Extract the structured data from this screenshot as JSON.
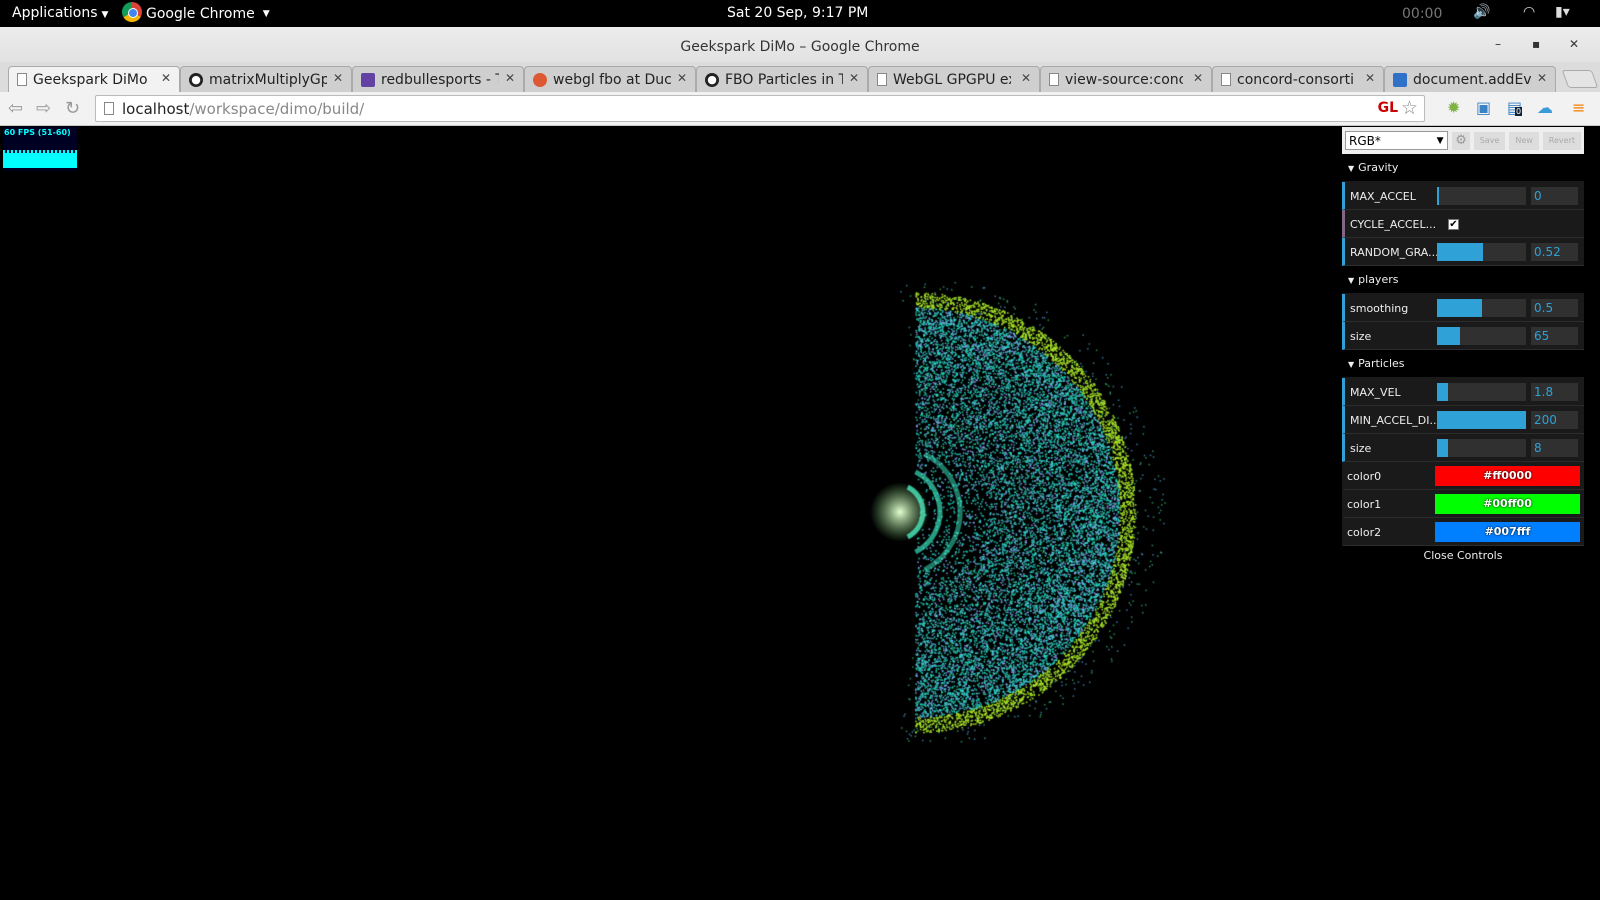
{
  "system": {
    "applications_label": "Applications",
    "chrome_app_label": "Google Chrome",
    "clock": "Sat 20 Sep,  9:17 PM",
    "timer": "00:00"
  },
  "window": {
    "title": "Geekspark DiMo – Google Chrome"
  },
  "tabs": [
    {
      "label": "Geekspark DiMo",
      "icon": "page-icon"
    },
    {
      "label": "matrixMultiplyGpu.",
      "icon": "github-icon"
    },
    {
      "label": "redbullesports - Tw",
      "icon": "twitch-icon"
    },
    {
      "label": "webgl fbo at DuckD",
      "icon": "duckduckgo-icon"
    },
    {
      "label": "FBO Particles in Thr",
      "icon": "github-icon"
    },
    {
      "label": "WebGL GPGPU exp",
      "icon": "page-icon"
    },
    {
      "label": "view-source:concor",
      "icon": "page-icon"
    },
    {
      "label": "concord-consortium",
      "icon": "page-icon"
    },
    {
      "label": "document.addEven",
      "icon": "site-icon"
    }
  ],
  "address": {
    "host": "localhost",
    "path": "/workspace/dimo/build/",
    "gl_badge": "GL",
    "ext_badge": "0"
  },
  "stats": {
    "fps_text": "60 FPS (51-60)",
    "fps": 60
  },
  "gui": {
    "preset": "RGB*",
    "save": "Save",
    "new": "New",
    "revert": "Revert",
    "folders": {
      "gravity": "Gravity",
      "players": "players",
      "particles": "Particles"
    },
    "gravity": {
      "max_accel": {
        "label": "MAX_ACCEL",
        "value": "0",
        "fraction": 0.01
      },
      "cycle_accel": {
        "label": "CYCLE_ACCEL...",
        "checked": true
      },
      "random_gra": {
        "label": "RANDOM_GRA...",
        "value": "0.52",
        "fraction": 0.52
      }
    },
    "players": {
      "smoothing": {
        "label": "smoothing",
        "value": "0.5",
        "fraction": 0.5
      },
      "size": {
        "label": "size",
        "value": "65",
        "fraction": 0.26
      }
    },
    "particles": {
      "max_vel": {
        "label": "MAX_VEL",
        "value": "1.8",
        "fraction": 0.12
      },
      "min_accel": {
        "label": "MIN_ACCEL_DI...",
        "value": "200",
        "fraction": 1.0
      },
      "size": {
        "label": "size",
        "value": "8",
        "fraction": 0.12
      },
      "color0": {
        "label": "color0",
        "value": "#ff0000"
      },
      "color1": {
        "label": "color1",
        "value": "#00ff00"
      },
      "color2": {
        "label": "color2",
        "value": "#007fff"
      }
    },
    "close": "Close Controls"
  }
}
